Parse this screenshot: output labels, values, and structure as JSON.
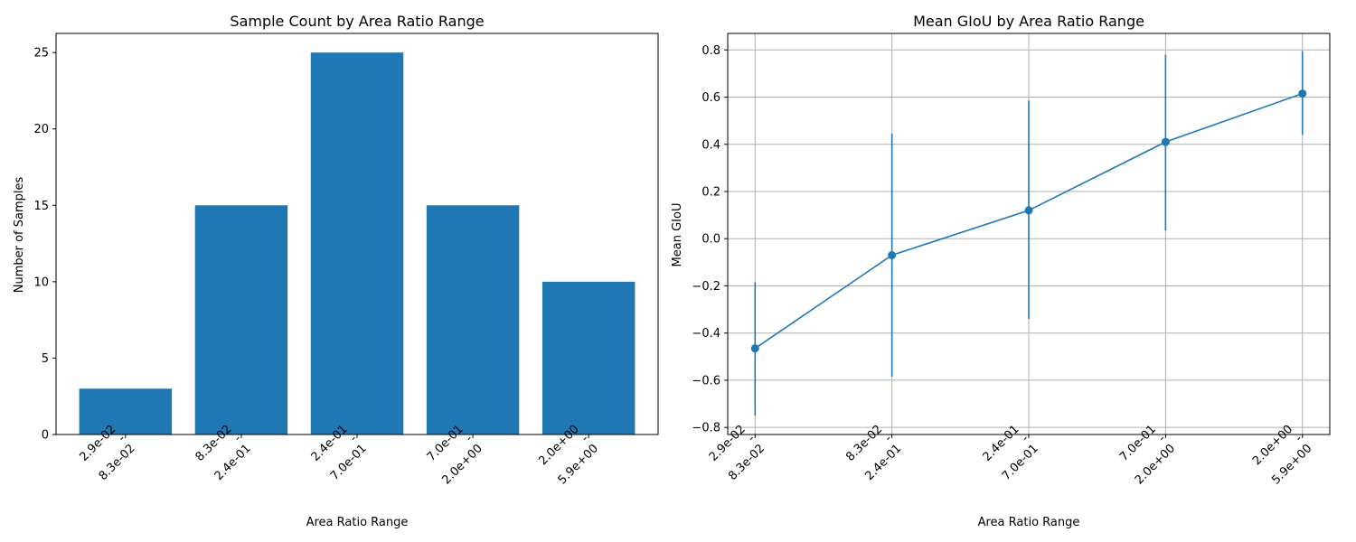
{
  "chart_data": [
    {
      "type": "bar",
      "title": "Sample Count by Area Ratio Range",
      "xlabel": "Area Ratio Range",
      "ylabel": "Number of Samples",
      "categories": [
        {
          "low": "2.9e-02",
          "high": "8.3e-02"
        },
        {
          "low": "8.3e-02",
          "high": "2.4e-01"
        },
        {
          "low": "2.4e-01",
          "high": "7.0e-01"
        },
        {
          "low": "7.0e-01",
          "high": "2.0e+00"
        },
        {
          "low": "2.0e+00",
          "high": "5.9e+00"
        }
      ],
      "values": [
        3,
        15,
        25,
        15,
        10
      ],
      "ylim": [
        0,
        26.25
      ],
      "yticks": [
        0,
        5,
        10,
        15,
        20,
        25
      ],
      "ytick_labels": [
        "0",
        "5",
        "10",
        "15",
        "20",
        "25"
      ],
      "grid": false,
      "color": "#1f77b4"
    },
    {
      "type": "line",
      "title": "Mean GIoU by Area Ratio Range",
      "xlabel": "Area Ratio Range",
      "ylabel": "Mean GIoU",
      "categories": [
        {
          "low": "2.9e-02",
          "high": "8.3e-02"
        },
        {
          "low": "8.3e-02",
          "high": "2.4e-01"
        },
        {
          "low": "2.4e-01",
          "high": "7.0e-01"
        },
        {
          "low": "7.0e-01",
          "high": "2.0e+00"
        },
        {
          "low": "2.0e+00",
          "high": "5.9e+00"
        }
      ],
      "values": [
        -0.465,
        -0.07,
        0.12,
        0.41,
        0.615
      ],
      "error_low": [
        -0.75,
        -0.585,
        -0.34,
        0.035,
        0.44
      ],
      "error_high": [
        -0.185,
        0.445,
        0.585,
        0.78,
        0.795
      ],
      "ylim": [
        -0.83,
        0.87
      ],
      "yticks": [
        -0.8,
        -0.6,
        -0.4,
        -0.2,
        0.0,
        0.2,
        0.4,
        0.6,
        0.8
      ],
      "ytick_labels": [
        "−0.8",
        "−0.6",
        "−0.4",
        "−0.2",
        "0.0",
        "0.2",
        "0.4",
        "0.6",
        "0.8"
      ],
      "grid": true,
      "color": "#1f77b4"
    }
  ],
  "separator": "-"
}
